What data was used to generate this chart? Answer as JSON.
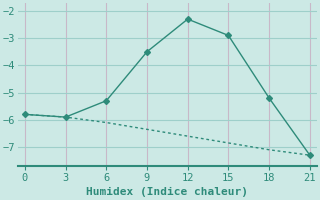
{
  "x": [
    0,
    3,
    6,
    9,
    12,
    15,
    18,
    21
  ],
  "line1_y": [
    -5.8,
    -5.9,
    -5.3,
    -3.5,
    -2.3,
    -2.9,
    -5.2,
    -7.3
  ],
  "line2_y": [
    -5.8,
    -5.9,
    -6.1,
    -6.35,
    -6.6,
    -6.85,
    -7.1,
    -7.3
  ],
  "line_color": "#2e8b7a",
  "bg_color": "#cce9e5",
  "grid_color_x": "#c8b8c8",
  "grid_color_y": "#9ecfca",
  "xlabel": "Humidex (Indice chaleur)",
  "xlim": [
    -0.5,
    21.5
  ],
  "ylim": [
    -7.7,
    -1.7
  ],
  "xticks": [
    0,
    3,
    6,
    9,
    12,
    15,
    18,
    21
  ],
  "yticks": [
    -7,
    -6,
    -5,
    -4,
    -3,
    -2
  ],
  "marker": "D",
  "markersize": 3,
  "linewidth": 1.0,
  "font_size": 7.5,
  "xlabel_fontsize": 8,
  "spine_color": "#2e8b7a"
}
